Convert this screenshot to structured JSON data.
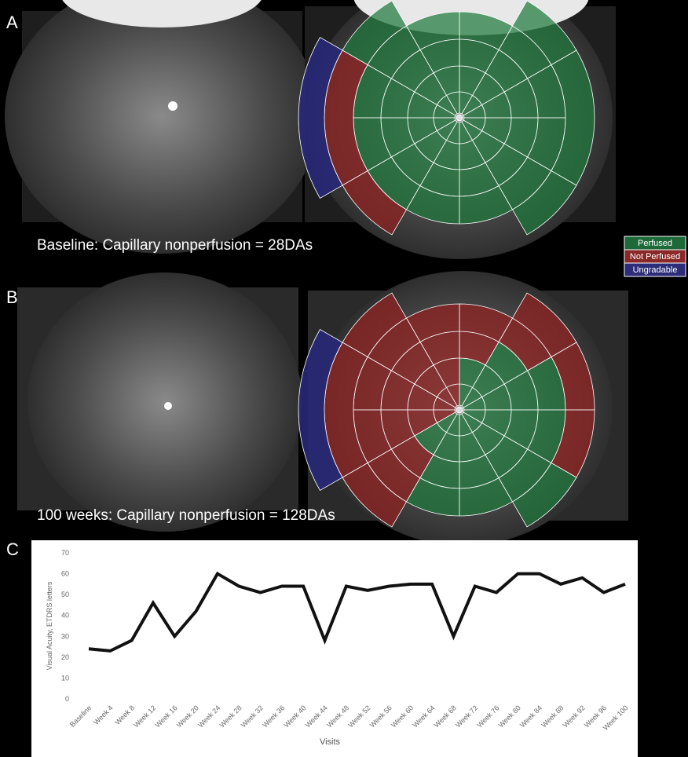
{
  "panels": {
    "a": {
      "label": "A",
      "caption": "Baseline: Capillary nonperfusion = 28DAs"
    },
    "b": {
      "label": "B",
      "caption": "100 weeks: Capillary nonperfusion = 128DAs"
    },
    "c": {
      "label": "C"
    }
  },
  "legend": [
    "Perfused",
    "Not Perfused",
    "Ungradable"
  ],
  "chart_data": {
    "type": "line",
    "x_label": "Visits",
    "y_label": "Visual Acuity, ETDRS letters",
    "categories": [
      "Baseline",
      "Week 4",
      "Week 8",
      "Week 12",
      "Week 16",
      "Week 20",
      "Week 24",
      "Week 28",
      "Week 32",
      "Week 36",
      "Week 40",
      "Week 44",
      "Week 48",
      "Week 52",
      "Week 56",
      "Week 60",
      "Week 64",
      "Week 68",
      "Week 72",
      "Week 76",
      "Week 80",
      "Week 84",
      "Week 88",
      "Week 92",
      "Week 96",
      "Week 100"
    ],
    "values": [
      24,
      23,
      28,
      46,
      30,
      42,
      60,
      54,
      51,
      54,
      54,
      28,
      54,
      52,
      54,
      55,
      55,
      30,
      54,
      51,
      60,
      60,
      55,
      58,
      51,
      55
    ],
    "color": "#111111",
    "ylim": [
      0,
      70
    ],
    "yticks": [
      0,
      10,
      20,
      30,
      40,
      50,
      60,
      70
    ],
    "grid": false
  }
}
